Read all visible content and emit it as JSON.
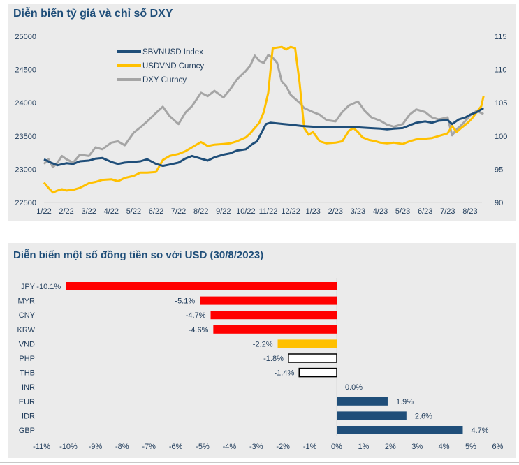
{
  "chart_data": [
    {
      "type": "line",
      "title": "Diễn biến tỷ giá và chỉ số DXY",
      "x_ticks": [
        "1/22",
        "2/22",
        "3/22",
        "4/22",
        "5/22",
        "6/22",
        "7/22",
        "8/22",
        "9/22",
        "10/22",
        "11/22",
        "12/22",
        "1/23",
        "2/23",
        "3/23",
        "4/23",
        "5/23",
        "6/23",
        "7/23",
        "8/23"
      ],
      "y_left": {
        "ylim": [
          22500,
          25000
        ],
        "ticks": [
          "22500",
          "23000",
          "23500",
          "24000",
          "24500",
          "25000"
        ]
      },
      "y_right": {
        "ylim": [
          90,
          115
        ],
        "ticks": [
          "90",
          "95",
          "100",
          "105",
          "110",
          "115"
        ]
      },
      "legend": "top-left",
      "grid": false,
      "series": [
        {
          "name": "SBVNUSD Index",
          "axis": "left",
          "color": "#1f4e79",
          "x": [
            0,
            0.3,
            0.6,
            1,
            1.3,
            1.6,
            2,
            2.3,
            2.6,
            3,
            3.3,
            3.6,
            4,
            4.3,
            4.6,
            5,
            5.3,
            5.6,
            6,
            6.3,
            6.6,
            7,
            7.3,
            7.6,
            8,
            8.3,
            8.6,
            9,
            9.3,
            9.5,
            9.7,
            9.9,
            10.1,
            10.4,
            10.7,
            11,
            11.5,
            12,
            12.5,
            13,
            13.5,
            14,
            14.5,
            15,
            15.3,
            15.6,
            16,
            16.3,
            16.6,
            17,
            17.3,
            17.6,
            18,
            18.2,
            18.5,
            18.8,
            19,
            19.3,
            19.6
          ],
          "values": [
            23150,
            23100,
            23060,
            23090,
            23080,
            23120,
            23130,
            23160,
            23170,
            23110,
            23080,
            23100,
            23110,
            23120,
            23150,
            23080,
            23050,
            23070,
            23100,
            23160,
            23200,
            23160,
            23130,
            23180,
            23220,
            23240,
            23280,
            23300,
            23380,
            23420,
            23550,
            23680,
            23700,
            23690,
            23680,
            23670,
            23650,
            23640,
            23640,
            23630,
            23640,
            23630,
            23620,
            23610,
            23600,
            23610,
            23620,
            23660,
            23700,
            23720,
            23700,
            23730,
            23740,
            23680,
            23750,
            23780,
            23820,
            23860,
            23920
          ]
        },
        {
          "name": "USDVND Curncy",
          "axis": "left",
          "color": "#ffc000",
          "x": [
            0,
            0.2,
            0.4,
            0.6,
            0.8,
            1,
            1.3,
            1.6,
            2,
            2.3,
            2.6,
            3,
            3.3,
            3.6,
            4,
            4.3,
            4.6,
            5,
            5.3,
            5.6,
            6,
            6.3,
            6.6,
            7,
            7.3,
            7.6,
            8,
            8.3,
            8.6,
            9,
            9.2,
            9.4,
            9.6,
            9.8,
            10,
            10.2,
            10.4,
            10.6,
            10.8,
            11,
            11.2,
            11.4,
            11.6,
            11.8,
            12,
            12.3,
            12.6,
            13,
            13.3,
            13.6,
            13.8,
            14,
            14.2,
            14.5,
            14.8,
            15,
            15.3,
            15.6,
            16,
            16.3,
            16.6,
            17,
            17.3,
            17.6,
            18,
            18.2,
            18.4,
            18.6,
            18.9,
            19.1,
            19.3,
            19.5,
            19.6
          ],
          "values": [
            22800,
            22720,
            22650,
            22680,
            22700,
            22680,
            22690,
            22720,
            22790,
            22810,
            22840,
            22850,
            22820,
            22870,
            22900,
            22950,
            22950,
            22960,
            23140,
            23200,
            23230,
            23270,
            23330,
            23410,
            23350,
            23370,
            23380,
            23390,
            23420,
            23480,
            23540,
            23620,
            23700,
            23860,
            24150,
            24820,
            24830,
            24840,
            24800,
            24840,
            24820,
            24300,
            23620,
            23520,
            23560,
            23420,
            23390,
            23400,
            23420,
            23580,
            23620,
            23560,
            23480,
            23440,
            23420,
            23400,
            23390,
            23400,
            23380,
            23420,
            23450,
            23460,
            23470,
            23500,
            23540,
            23650,
            23560,
            23620,
            23700,
            23770,
            23860,
            23950,
            24100
          ]
        },
        {
          "name": "DXY Curncy",
          "axis": "right",
          "color": "#a5a5a5",
          "x": [
            0,
            0.2,
            0.4,
            0.6,
            0.8,
            1,
            1.3,
            1.6,
            2,
            2.3,
            2.6,
            3,
            3.3,
            3.6,
            4,
            4.3,
            4.6,
            5,
            5.3,
            5.6,
            6,
            6.3,
            6.6,
            7,
            7.3,
            7.6,
            8,
            8.3,
            8.6,
            9,
            9.2,
            9.4,
            9.6,
            9.8,
            10,
            10.2,
            10.4,
            10.6,
            10.8,
            11,
            11.2,
            11.4,
            11.6,
            12,
            12.3,
            12.6,
            13,
            13.3,
            13.6,
            14,
            14.3,
            14.6,
            15,
            15.3,
            15.6,
            16,
            16.3,
            16.6,
            17,
            17.3,
            17.6,
            18,
            18.2,
            18.4,
            18.6,
            18.8,
            19,
            19.3,
            19.6
          ],
          "values": [
            95.8,
            96.5,
            95.3,
            96,
            97,
            96.5,
            96,
            97.2,
            97,
            98.3,
            98,
            99,
            99.2,
            98.6,
            100.5,
            101.3,
            102.2,
            103.5,
            104.4,
            103,
            101.8,
            103.5,
            104.5,
            106.5,
            106,
            106.8,
            105.8,
            107,
            108.5,
            109.8,
            110.6,
            112.1,
            111.3,
            111,
            112.2,
            111.8,
            111,
            108.2,
            107.5,
            106.2,
            105.6,
            105,
            104.2,
            103.6,
            103.2,
            102.4,
            102.2,
            103.6,
            104.6,
            105.2,
            103.8,
            102.8,
            102.3,
            101.7,
            101.4,
            101.8,
            103.2,
            104,
            103.6,
            102.8,
            102.5,
            102.8,
            100.1,
            101,
            101.6,
            102.3,
            103.1,
            103.8,
            103.3
          ]
        }
      ]
    },
    {
      "type": "bar",
      "orientation": "horizontal",
      "title": "Diễn biến một số đồng tiền so với USD (30/8/2023)",
      "categories": [
        "JPY",
        "MYR",
        "CNY",
        "KRW",
        "VND",
        "PHP",
        "THB",
        "INR",
        "EUR",
        "IDR",
        "GBP"
      ],
      "values": [
        -10.1,
        -5.1,
        -4.7,
        -4.6,
        -2.2,
        -1.8,
        -1.4,
        0.0,
        1.9,
        2.6,
        4.7
      ],
      "value_labels": [
        "-10.1%",
        "-5.1%",
        "-4.7%",
        "-4.6%",
        "-2.2%",
        "-1.8%",
        "-1.4%",
        "0.0%",
        "1.9%",
        "2.6%",
        "4.7%"
      ],
      "bar_colors": [
        "#ff0000",
        "#ff0000",
        "#ff0000",
        "#ff0000",
        "#ffc000",
        "#ffffff",
        "#ffffff",
        "#1f4e79",
        "#1f4e79",
        "#1f4e79",
        "#1f4e79"
      ],
      "xlim": [
        -11,
        6
      ],
      "x_ticks": [
        "-11%",
        "-10%",
        "-9%",
        "-8%",
        "-7%",
        "-6%",
        "-5%",
        "-4%",
        "-3%",
        "-2%",
        "-1%",
        "0%",
        "1%",
        "2%",
        "3%",
        "4%",
        "5%",
        "6%"
      ],
      "xlabel": "",
      "ylabel": "",
      "grid": false
    }
  ]
}
